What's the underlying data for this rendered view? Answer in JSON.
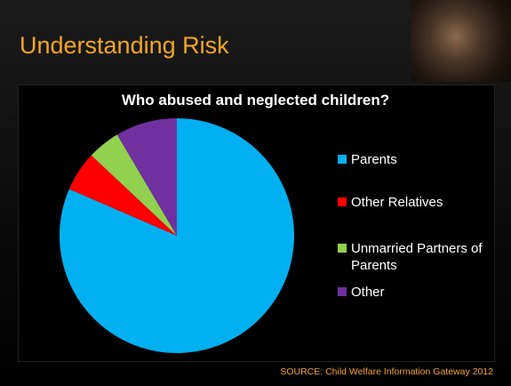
{
  "slide_title": "Understanding Risk",
  "chart_data": {
    "type": "pie",
    "title": "Who abused and neglected children?",
    "categories": [
      "Parents",
      "Other Relatives",
      "Unmarried Partners of Parents",
      "Other"
    ],
    "values": [
      81.5,
      5.5,
      4.5,
      8.5
    ],
    "colors": [
      "#00b0f0",
      "#ff0000",
      "#92d050",
      "#7030a0"
    ]
  },
  "source": "SOURCE: Child Welfare Information Gateway 2012"
}
